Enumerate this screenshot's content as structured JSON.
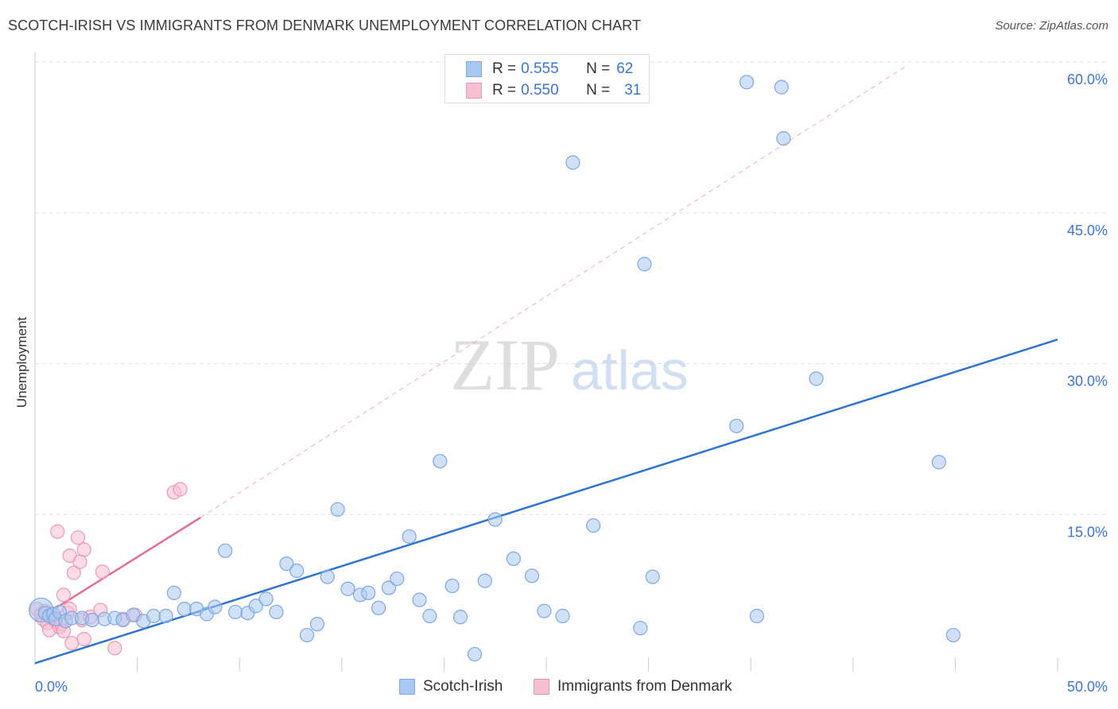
{
  "title": "SCOTCH-IRISH VS IMMIGRANTS FROM DENMARK UNEMPLOYMENT CORRELATION CHART",
  "source": "Source: ZipAtlas.com",
  "watermark": {
    "zip": "ZIP",
    "atlas": "atlas"
  },
  "legend": {
    "series1": {
      "r_label": "R =",
      "r_value": "0.555",
      "n_label": "N =",
      "n_value": "62"
    },
    "series2": {
      "r_label": "R =",
      "r_value": "0.550",
      "n_label": "N =",
      "n_value": "31"
    }
  },
  "colors": {
    "blue_fill": "#a9c8f0",
    "blue_stroke": "#7ea8e0",
    "blue_line": "#2f74d0",
    "pink_fill": "#f7bfd2",
    "pink_stroke": "#ee97b4",
    "pink_line": "#e46c96",
    "tick_label": "#3b76d6",
    "grid": "#e2e2e2"
  },
  "chart_data": {
    "type": "scatter",
    "title": "SCOTCH-IRISH VS IMMIGRANTS FROM DENMARK UNEMPLOYMENT CORRELATION CHART",
    "xlabel": "",
    "ylabel": "Unemployment",
    "xlim": [
      0,
      50
    ],
    "ylim": [
      0,
      60
    ],
    "x_tick_labels": [
      {
        "value": 0,
        "label": "0.0%"
      },
      {
        "value": 50,
        "label": "50.0%"
      }
    ],
    "y_tick_labels": [
      {
        "value": 15,
        "label": "15.0%"
      },
      {
        "value": 30,
        "label": "30.0%"
      },
      {
        "value": 45,
        "label": "45.0%"
      },
      {
        "value": 60,
        "label": "60.0%"
      }
    ],
    "grid": true,
    "legend_position": "top-center",
    "series": [
      {
        "name": "Scotch-Irish",
        "color": "blue",
        "R": 0.555,
        "N": 62,
        "trendline": {
          "x": [
            0,
            50
          ],
          "y": [
            0.2,
            32.4
          ],
          "style": "solid"
        },
        "points": [
          {
            "x": 0.3,
            "y": 5.5,
            "big": true
          },
          {
            "x": 0.5,
            "y": 5.2
          },
          {
            "x": 0.7,
            "y": 4.9
          },
          {
            "x": 0.9,
            "y": 5.1
          },
          {
            "x": 1.0,
            "y": 4.6
          },
          {
            "x": 1.2,
            "y": 5.3
          },
          {
            "x": 1.5,
            "y": 4.4
          },
          {
            "x": 1.8,
            "y": 4.7
          },
          {
            "x": 2.3,
            "y": 4.7
          },
          {
            "x": 2.8,
            "y": 4.5
          },
          {
            "x": 3.4,
            "y": 4.6
          },
          {
            "x": 3.9,
            "y": 4.7
          },
          {
            "x": 4.3,
            "y": 4.5
          },
          {
            "x": 4.8,
            "y": 5.0
          },
          {
            "x": 5.3,
            "y": 4.4
          },
          {
            "x": 5.8,
            "y": 4.9
          },
          {
            "x": 6.4,
            "y": 4.9
          },
          {
            "x": 6.8,
            "y": 7.2
          },
          {
            "x": 7.3,
            "y": 5.6
          },
          {
            "x": 7.9,
            "y": 5.6
          },
          {
            "x": 8.4,
            "y": 5.1
          },
          {
            "x": 8.8,
            "y": 5.8
          },
          {
            "x": 9.3,
            "y": 11.4
          },
          {
            "x": 9.8,
            "y": 5.3
          },
          {
            "x": 10.4,
            "y": 5.2
          },
          {
            "x": 10.8,
            "y": 5.9
          },
          {
            "x": 11.3,
            "y": 6.6
          },
          {
            "x": 11.8,
            "y": 5.3
          },
          {
            "x": 12.3,
            "y": 10.1
          },
          {
            "x": 12.8,
            "y": 9.4
          },
          {
            "x": 13.3,
            "y": 3.0
          },
          {
            "x": 13.8,
            "y": 4.1
          },
          {
            "x": 14.3,
            "y": 8.8
          },
          {
            "x": 14.8,
            "y": 15.5
          },
          {
            "x": 15.3,
            "y": 7.6
          },
          {
            "x": 15.9,
            "y": 7.0
          },
          {
            "x": 16.3,
            "y": 7.2
          },
          {
            "x": 16.8,
            "y": 5.7
          },
          {
            "x": 17.3,
            "y": 7.7
          },
          {
            "x": 17.7,
            "y": 8.6
          },
          {
            "x": 18.3,
            "y": 12.8
          },
          {
            "x": 18.8,
            "y": 6.5
          },
          {
            "x": 19.3,
            "y": 4.9
          },
          {
            "x": 19.8,
            "y": 20.3
          },
          {
            "x": 20.4,
            "y": 7.9
          },
          {
            "x": 20.8,
            "y": 4.8
          },
          {
            "x": 21.5,
            "y": 1.1
          },
          {
            "x": 22.0,
            "y": 8.4
          },
          {
            "x": 22.5,
            "y": 14.5
          },
          {
            "x": 23.4,
            "y": 10.6
          },
          {
            "x": 24.3,
            "y": 8.9
          },
          {
            "x": 24.9,
            "y": 5.4
          },
          {
            "x": 25.8,
            "y": 4.9
          },
          {
            "x": 26.3,
            "y": 50.0
          },
          {
            "x": 27.3,
            "y": 13.9
          },
          {
            "x": 29.6,
            "y": 3.7
          },
          {
            "x": 29.8,
            "y": 39.9
          },
          {
            "x": 30.2,
            "y": 8.8
          },
          {
            "x": 34.3,
            "y": 23.8
          },
          {
            "x": 34.8,
            "y": 58.0
          },
          {
            "x": 35.3,
            "y": 4.9
          },
          {
            "x": 36.5,
            "y": 57.5
          },
          {
            "x": 36.6,
            "y": 52.4
          },
          {
            "x": 38.2,
            "y": 28.5
          },
          {
            "x": 44.2,
            "y": 20.2
          },
          {
            "x": 44.9,
            "y": 3.0
          }
        ]
      },
      {
        "name": "Immigrants from Denmark",
        "color": "pink",
        "R": 0.55,
        "N": 31,
        "trendline": {
          "x": [
            0,
            8.1
          ],
          "y": [
            4.4,
            14.7
          ],
          "style": "solid"
        },
        "trendline_extension": {
          "x": [
            8.1,
            42.6
          ],
          "y": [
            14.7,
            59.6
          ],
          "style": "dashed"
        },
        "points": [
          {
            "x": 0.1,
            "y": 5.6
          },
          {
            "x": 0.3,
            "y": 5.0
          },
          {
            "x": 0.4,
            "y": 4.6
          },
          {
            "x": 0.5,
            "y": 5.4
          },
          {
            "x": 0.6,
            "y": 4.2
          },
          {
            "x": 0.7,
            "y": 3.5
          },
          {
            "x": 0.8,
            "y": 5.1
          },
          {
            "x": 0.9,
            "y": 4.7
          },
          {
            "x": 1.0,
            "y": 4.4
          },
          {
            "x": 1.1,
            "y": 13.3
          },
          {
            "x": 1.2,
            "y": 3.8
          },
          {
            "x": 1.3,
            "y": 4.1
          },
          {
            "x": 1.4,
            "y": 3.4
          },
          {
            "x": 1.4,
            "y": 7.0
          },
          {
            "x": 1.6,
            "y": 5.2
          },
          {
            "x": 1.7,
            "y": 5.6
          },
          {
            "x": 1.7,
            "y": 10.9
          },
          {
            "x": 1.8,
            "y": 2.2
          },
          {
            "x": 1.9,
            "y": 9.2
          },
          {
            "x": 2.1,
            "y": 12.7
          },
          {
            "x": 2.2,
            "y": 10.3
          },
          {
            "x": 2.3,
            "y": 4.5
          },
          {
            "x": 2.4,
            "y": 2.6
          },
          {
            "x": 2.4,
            "y": 11.5
          },
          {
            "x": 2.7,
            "y": 4.8
          },
          {
            "x": 3.2,
            "y": 5.5
          },
          {
            "x": 3.3,
            "y": 9.3
          },
          {
            "x": 3.9,
            "y": 1.7
          },
          {
            "x": 4.3,
            "y": 4.6
          },
          {
            "x": 4.9,
            "y": 5.0
          },
          {
            "x": 6.8,
            "y": 17.2
          },
          {
            "x": 7.1,
            "y": 17.5
          }
        ]
      }
    ]
  },
  "bottom_legend": {
    "series1": "Scotch-Irish",
    "series2": "Immigrants from Denmark"
  }
}
